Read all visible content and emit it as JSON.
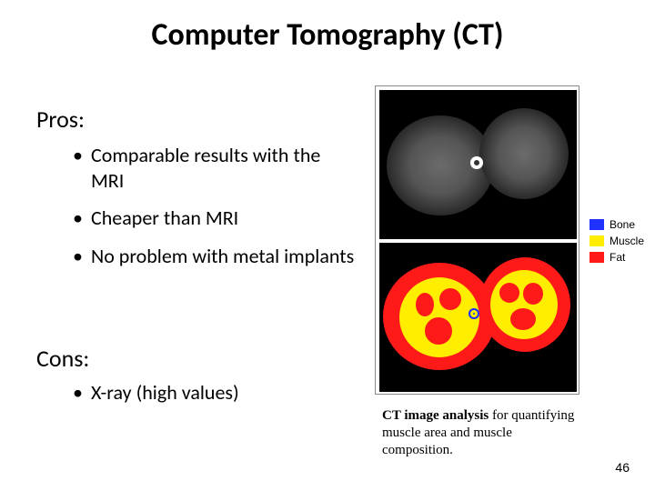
{
  "title": "Computer Tomography (CT)",
  "pros": {
    "heading": "Pros",
    "items": [
      "Comparable results with the MRI",
      "Cheaper than MRI",
      "No problem with metal implants"
    ]
  },
  "cons": {
    "heading": "Cons",
    "items": [
      "X-ray (high values)"
    ]
  },
  "legend": {
    "items": [
      {
        "label": "Bone",
        "color": "#2030ff"
      },
      {
        "label": "Muscle",
        "color": "#ffee00"
      },
      {
        "label": "Fat",
        "color": "#ff1a1a"
      }
    ]
  },
  "caption": {
    "bold": "CT image analysis",
    "rest": " for quantifying muscle area and muscle composition."
  },
  "page_number": "46",
  "ct_figure": {
    "panel_border_color": "#888888",
    "background_color": "#000000",
    "top_image": {
      "type": "grayscale-ct-cross-section",
      "regions": 2
    },
    "bottom_image": {
      "type": "segmented-ct-cross-section",
      "fat_color": "#ff1a1a",
      "muscle_color": "#ffee00",
      "bone_color": "#2030ff"
    }
  }
}
